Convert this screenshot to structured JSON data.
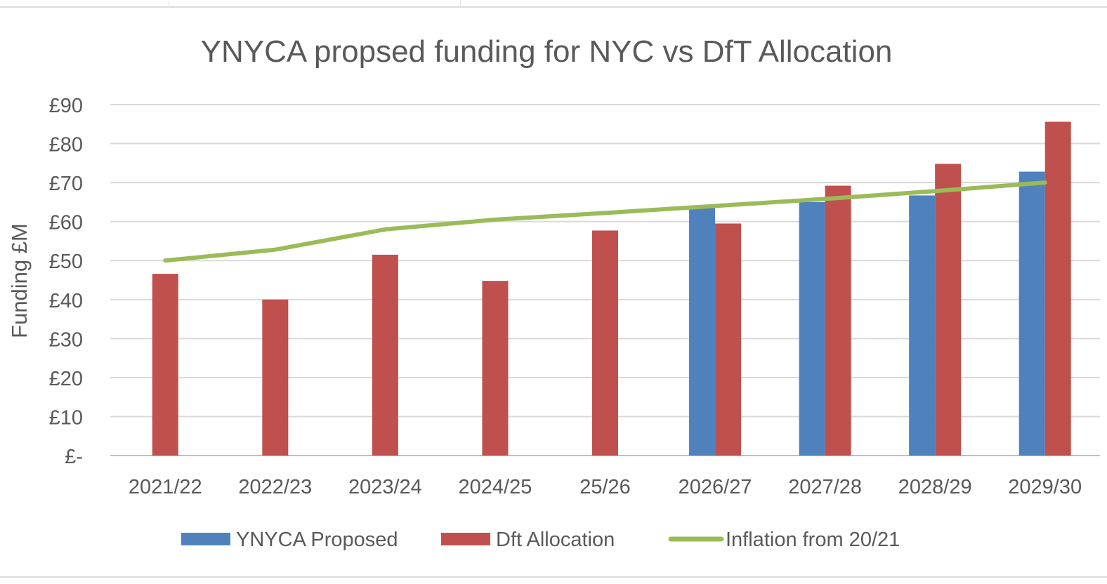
{
  "chart_data": {
    "type": "bar",
    "title": "YNYCA propsed funding for NYC vs DfT Allocation",
    "xlabel": "",
    "ylabel": "Funding £M",
    "ylim": [
      0,
      90
    ],
    "yticks": [
      0,
      10,
      20,
      30,
      40,
      50,
      60,
      70,
      80,
      90
    ],
    "ytick_labels": [
      "£-",
      "£10",
      "£20",
      "£30",
      "£40",
      "£50",
      "£60",
      "£70",
      "£80",
      "£90"
    ],
    "categories": [
      "2021/22",
      "2022/23",
      "2023/24",
      "2024/25",
      "25/26",
      "2026/27",
      "2027/28",
      "2028/29",
      "2029/30"
    ],
    "series": [
      {
        "name": "YNYCA Proposed",
        "kind": "bar",
        "color": "#4f81bd",
        "values": [
          null,
          null,
          null,
          null,
          null,
          64,
          65,
          66.7,
          72.8
        ]
      },
      {
        "name": "Dft Allocation",
        "kind": "bar",
        "color": "#c0504d",
        "values": [
          46.6,
          40,
          51.5,
          44.8,
          57.7,
          59.5,
          69.2,
          74.8,
          85.6
        ]
      },
      {
        "name": "Inflation from 20/21",
        "kind": "line",
        "color": "#9bbb59",
        "values": [
          50,
          52.8,
          58,
          60.5,
          62.2,
          64,
          65.8,
          67.8,
          70
        ]
      }
    ],
    "grid": true,
    "legend": "bottom"
  }
}
